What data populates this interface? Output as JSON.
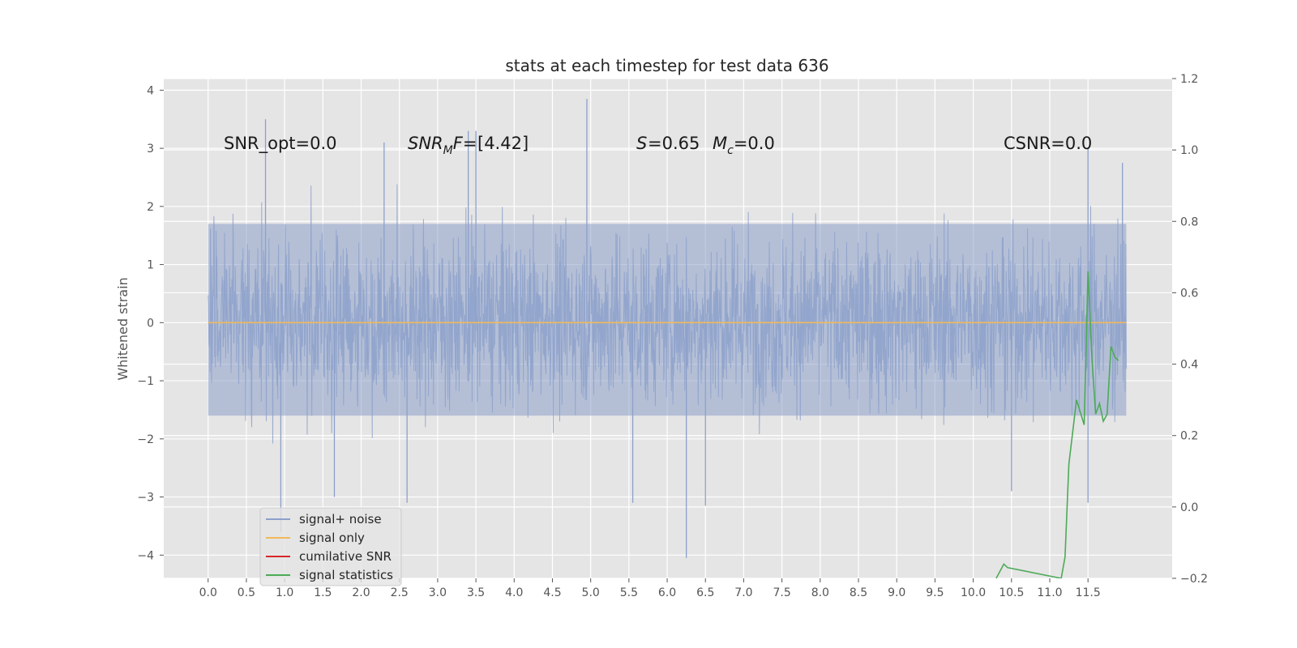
{
  "chart_data": {
    "type": "line",
    "title": "stats at each timestep for test data 636",
    "xlabel": "",
    "ylabel": "Whitened strain",
    "xlim": [
      -0.58,
      12.6
    ],
    "ylim": [
      -4.4,
      4.2
    ],
    "ylim_right": [
      -0.2,
      1.2
    ],
    "grid": true,
    "legend_position": "lower-left",
    "x_ticks": [
      "0.0",
      "0.5",
      "1.0",
      "1.5",
      "2.0",
      "2.5",
      "3.0",
      "3.5",
      "4.0",
      "4.5",
      "5.0",
      "5.5",
      "6.0",
      "6.5",
      "7.0",
      "7.5",
      "8.0",
      "8.5",
      "9.0",
      "9.5",
      "10.0",
      "10.5",
      "11.0",
      "11.5"
    ],
    "y_ticks_left": [
      "4",
      "3",
      "2",
      "1",
      "0",
      "−1",
      "−2",
      "−3",
      "−4"
    ],
    "y_ticks_right": [
      "1.2",
      "1.0",
      "0.8",
      "0.6",
      "0.4",
      "0.2",
      "0.0",
      "−0.2"
    ],
    "annotations": [
      {
        "id": "snr-opt",
        "text": "SNR_opt=0.0",
        "x": 0.2,
        "y": 3.1
      },
      {
        "id": "snr-mf",
        "text": "[4.42]",
        "x": 2.6,
        "y": 3.1
      },
      {
        "id": "s-mc",
        "text": "=0.65",
        "x": 5.6,
        "y": 3.1
      },
      {
        "id": "csnr",
        "text": "CSNR=0.0",
        "x": 10.4,
        "y": 3.1
      }
    ],
    "series": [
      {
        "name": "signal+ noise",
        "color": "#8da0cb",
        "axis": "left",
        "x_range": [
          0.0,
          12.0
        ],
        "band": [
          -1.6,
          1.7
        ],
        "spikes": [
          {
            "x": 0.75,
            "y": 3.5
          },
          {
            "x": 0.95,
            "y": -3.6
          },
          {
            "x": 1.65,
            "y": -3.0
          },
          {
            "x": 2.3,
            "y": 3.1
          },
          {
            "x": 2.6,
            "y": -3.1
          },
          {
            "x": 3.4,
            "y": 3.3
          },
          {
            "x": 3.5,
            "y": 3.3
          },
          {
            "x": 4.95,
            "y": 3.85
          },
          {
            "x": 5.55,
            "y": -3.1
          },
          {
            "x": 6.25,
            "y": -4.05
          },
          {
            "x": 6.5,
            "y": -3.15
          },
          {
            "x": 10.5,
            "y": -2.9
          },
          {
            "x": 11.5,
            "y": 3.0
          },
          {
            "x": 11.5,
            "y": -3.1
          },
          {
            "x": 11.95,
            "y": 2.75
          }
        ]
      },
      {
        "name": "signal only",
        "color": "#f0b95a",
        "axis": "left",
        "x": [
          0.0,
          12.0
        ],
        "y": [
          0.0,
          0.0
        ]
      },
      {
        "name": "cumilative SNR",
        "color": "#d62728",
        "axis": "right",
        "x": [],
        "y": []
      },
      {
        "name": "signal statistics",
        "color": "#4daa57",
        "axis": "right",
        "x": [
          10.3,
          10.4,
          10.45,
          11.15,
          11.2,
          11.25,
          11.35,
          11.45,
          11.5,
          11.55,
          11.6,
          11.65,
          11.7,
          11.75,
          11.8,
          11.85,
          11.9
        ],
        "y": [
          -0.2,
          -0.16,
          -0.17,
          -0.2,
          -0.14,
          0.12,
          0.3,
          0.23,
          0.66,
          0.42,
          0.26,
          0.29,
          0.24,
          0.26,
          0.45,
          0.42,
          0.41
        ]
      }
    ]
  }
}
